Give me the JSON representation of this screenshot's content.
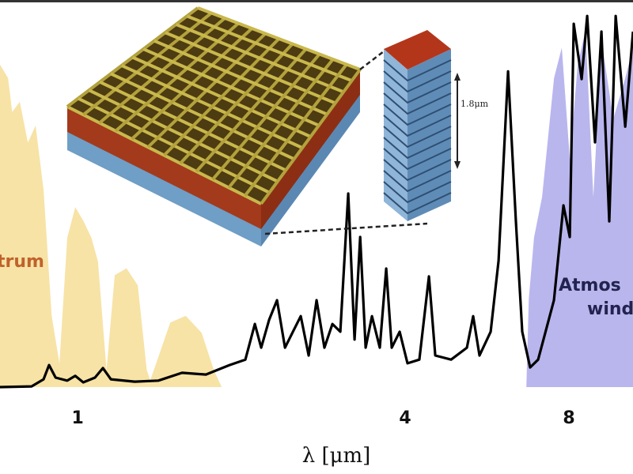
{
  "chart_data": {
    "type": "line",
    "x_scale": "log",
    "xlim": [
      0.72,
      10.49
    ],
    "ylim": [
      0,
      1.14
    ],
    "xticks": [
      1,
      4,
      8
    ],
    "xlabel": "λ [μm]",
    "grid": false,
    "series": [
      {
        "kind": "area",
        "color": "#f7e3a6",
        "x": [
          0.72,
          0.745,
          0.758,
          0.783,
          0.81,
          0.837,
          0.866,
          0.896,
          0.926,
          0.957,
          0.99,
          1.024,
          1.06,
          1.09,
          1.13,
          1.17,
          1.23,
          1.29,
          1.34,
          1.36,
          1.48,
          1.58,
          1.69,
          1.78,
          1.84
        ],
        "values": [
          0.95,
          0.91,
          0.81,
          0.84,
          0.72,
          0.77,
          0.58,
          0.21,
          0.07,
          0.44,
          0.53,
          0.49,
          0.44,
          0.37,
          0.05,
          0.33,
          0.35,
          0.3,
          0.05,
          0.02,
          0.19,
          0.21,
          0.16,
          0.05,
          0
        ]
      },
      {
        "kind": "area",
        "color": "#b9b6ee",
        "x": [
          6.68,
          6.75,
          6.9,
          7.14,
          7.51,
          7.76,
          8.03,
          8.3,
          8.58,
          8.87,
          9.18,
          9.65,
          10.15,
          10.49
        ],
        "values": [
          0,
          0.26,
          0.44,
          0.56,
          0.91,
          1.0,
          0.67,
          0.95,
          1.05,
          0.56,
          1.02,
          0.79,
          0.91,
          1.0
        ]
      },
      {
        "kind": "line",
        "color": "#000000",
        "x": [
          0.72,
          0.823,
          0.866,
          0.886,
          0.911,
          0.957,
          0.99,
          1.024,
          1.076,
          1.113,
          1.151,
          1.273,
          1.407,
          1.556,
          1.721,
          1.902,
          2.034,
          2.117,
          2.175,
          2.249,
          2.325,
          2.405,
          2.487,
          2.571,
          2.659,
          2.749,
          2.842,
          2.94,
          3.04,
          3.143,
          3.229,
          3.306,
          3.383,
          3.475,
          3.593,
          3.691,
          3.779,
          3.907,
          4.039,
          4.248,
          4.423,
          4.543,
          4.857,
          5.194,
          5.334,
          5.479,
          5.743,
          5.938,
          6.182,
          6.391,
          6.565,
          6.788,
          7.022,
          7.507,
          7.814,
          8.028,
          8.163,
          8.44,
          8.64,
          8.933,
          9.177,
          9.488,
          9.748,
          10.15,
          10.49
        ],
        "values": [
          0,
          0.002,
          0.023,
          0.065,
          0.028,
          0.019,
          0.033,
          0.014,
          0.028,
          0.056,
          0.023,
          0.016,
          0.019,
          0.042,
          0.037,
          0.065,
          0.081,
          0.186,
          0.116,
          0.198,
          0.256,
          0.116,
          0.163,
          0.209,
          0.093,
          0.256,
          0.116,
          0.186,
          0.163,
          0.57,
          0.14,
          0.442,
          0.116,
          0.209,
          0.116,
          0.349,
          0.116,
          0.163,
          0.07,
          0.081,
          0.326,
          0.093,
          0.081,
          0.116,
          0.209,
          0.093,
          0.163,
          0.372,
          0.93,
          0.488,
          0.163,
          0.058,
          0.081,
          0.256,
          0.535,
          0.442,
          1.07,
          0.907,
          1.093,
          0.721,
          1.047,
          0.488,
          1.093,
          0.767,
          1.047
        ]
      }
    ],
    "annotations": [
      "trum",
      "Atmos",
      "wind",
      "1.8μm"
    ]
  }
}
